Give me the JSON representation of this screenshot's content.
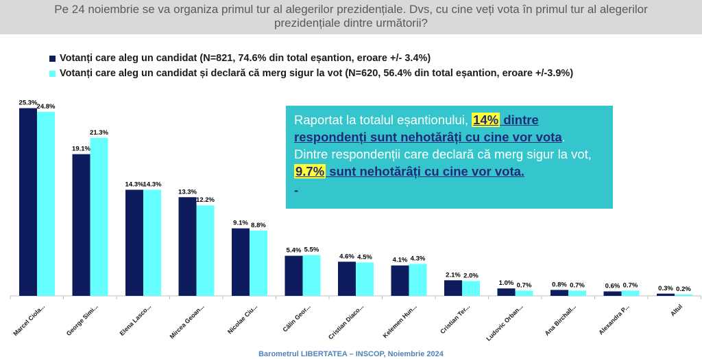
{
  "header": {
    "question_line1": "Pe 24 noiembrie se va organiza primul tur al alegerilor prezidențiale. Dvs, cu cine veți vota în primul tur al alegerilor",
    "question_line2": "prezidențiale dintre următorii?"
  },
  "note": {
    "p1_before": "Raportat la totalul eșantionului, ",
    "p1_highlight": "14%",
    "p1_underlined": " dintre respondenți sunt nehotărâți cu cine vor vota",
    "p1_end": ".",
    "p2_before": "Dintre respondenții care declară că merg sigur la vot, ",
    "p2_highlight": "9.7%",
    "p2_underlined": " sunt nehotărâți cu cine vor vota.",
    "dash": "-"
  },
  "footer": {
    "source": "Barometrul LIBERTATEA – INSCOP, Noiembrie 2024"
  },
  "colors": {
    "series1": "#0d1c5c",
    "series2": "#66ffff",
    "note_bg": "#34c6cc",
    "title_bg": "#d9d9d9"
  },
  "chart_data": {
    "type": "bar",
    "categories": [
      "Marcel Ciola...",
      "George Simi...",
      "Elena Lasco...",
      "Mircea Geoan...",
      "Nicolae Ciu...",
      "Călin Geor...",
      "Cristian Diaco...",
      "Kelemen Hun...",
      "Cristian Ter...",
      "Ludovic Orban...",
      "Ana Birchall...",
      "Alexandra P...",
      "Altul"
    ],
    "series": [
      {
        "name": "Votanți care aleg un candidat (N=821, 74.6% din total eșantion, eroare +/- 3.4%)",
        "values": [
          25.3,
          19.1,
          14.3,
          13.3,
          9.1,
          5.4,
          4.6,
          4.1,
          2.1,
          1.0,
          0.8,
          0.6,
          0.3
        ],
        "labels": [
          "25.3%",
          "19.1%",
          "14.3%",
          "13.3%",
          "9.1%",
          "5.4%",
          "4.6%",
          "4.1%",
          "2.1%",
          "1.0%",
          "0.8%",
          "0.6%",
          "0.3%"
        ]
      },
      {
        "name": "Votanți care aleg un candidat și declară că merg sigur la vot (N=620, 56.4% din total eșantion, eroare +/-3.9%)",
        "values": [
          24.8,
          21.3,
          14.3,
          12.2,
          8.8,
          5.5,
          4.5,
          4.3,
          2.0,
          0.7,
          0.7,
          0.7,
          0.2
        ],
        "labels": [
          "24.8%",
          "21.3%",
          "14.3%",
          "12.2%",
          "8.8%",
          "5.5%",
          "4.5%",
          "4.3%",
          "2.0%",
          "0.7%",
          "0.7%",
          "0.7%",
          "0.2%"
        ]
      }
    ],
    "ylim": [
      0,
      26
    ],
    "grid": false,
    "legend_position": "top-left"
  }
}
